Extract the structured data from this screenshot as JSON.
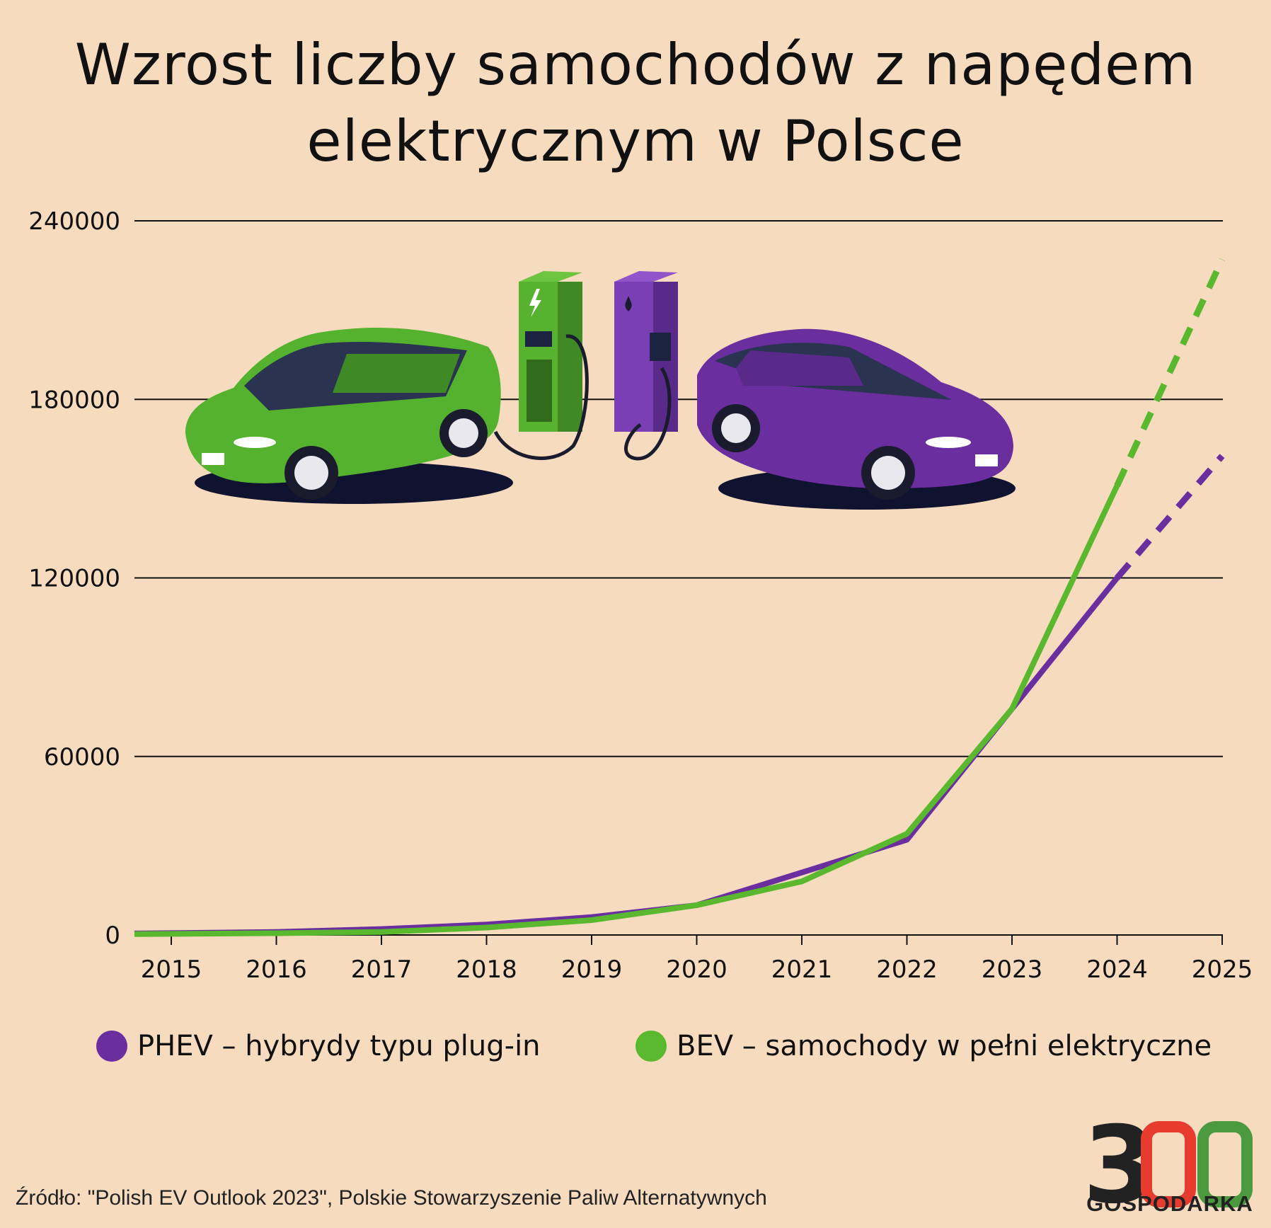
{
  "title_lines": [
    "Wzrost liczby samochodów z napędem",
    "elektrycznym w Polsce"
  ],
  "chart_data": {
    "type": "line",
    "x": [
      2015,
      2016,
      2017,
      2018,
      2019,
      2020,
      2021,
      2022,
      2023,
      2024,
      2025
    ],
    "x_tick_labels": [
      "2015",
      "2016",
      "2017",
      "2018",
      "2019",
      "2020",
      "2021",
      "2022",
      "2023",
      "2024",
      "2025"
    ],
    "y_ticks": [
      0,
      60000,
      120000,
      180000,
      240000
    ],
    "y_tick_labels": [
      "0",
      "60000",
      "120000",
      "180000",
      "240000"
    ],
    "ylim": [
      0,
      240000
    ],
    "grid": true,
    "series": [
      {
        "name": "PHEV – hybrydy typu plug-in",
        "color": "#6a2e9e",
        "values": [
          500,
          1000,
          2000,
          3500,
          6000,
          10000,
          21000,
          32000,
          76000,
          120000,
          161000
        ],
        "projected_from": 2024
      },
      {
        "name": "BEV – samochody w pełni elektryczne",
        "color": "#5ab82e",
        "values": [
          300,
          600,
          1000,
          2500,
          5000,
          10000,
          18000,
          34000,
          76000,
          151000,
          227000
        ],
        "projected_from": 2024
      }
    ],
    "legend_position": "bottom"
  },
  "source": "Źródło: \"Polish EV Outlook 2023\", Polskie Stowarzyszenie Paliw Alternatywnych",
  "logo": {
    "number": "300",
    "caption": "GOSPODARKA",
    "colors": [
      "#222222",
      "#e63b2e",
      "#4c9a3f"
    ]
  }
}
